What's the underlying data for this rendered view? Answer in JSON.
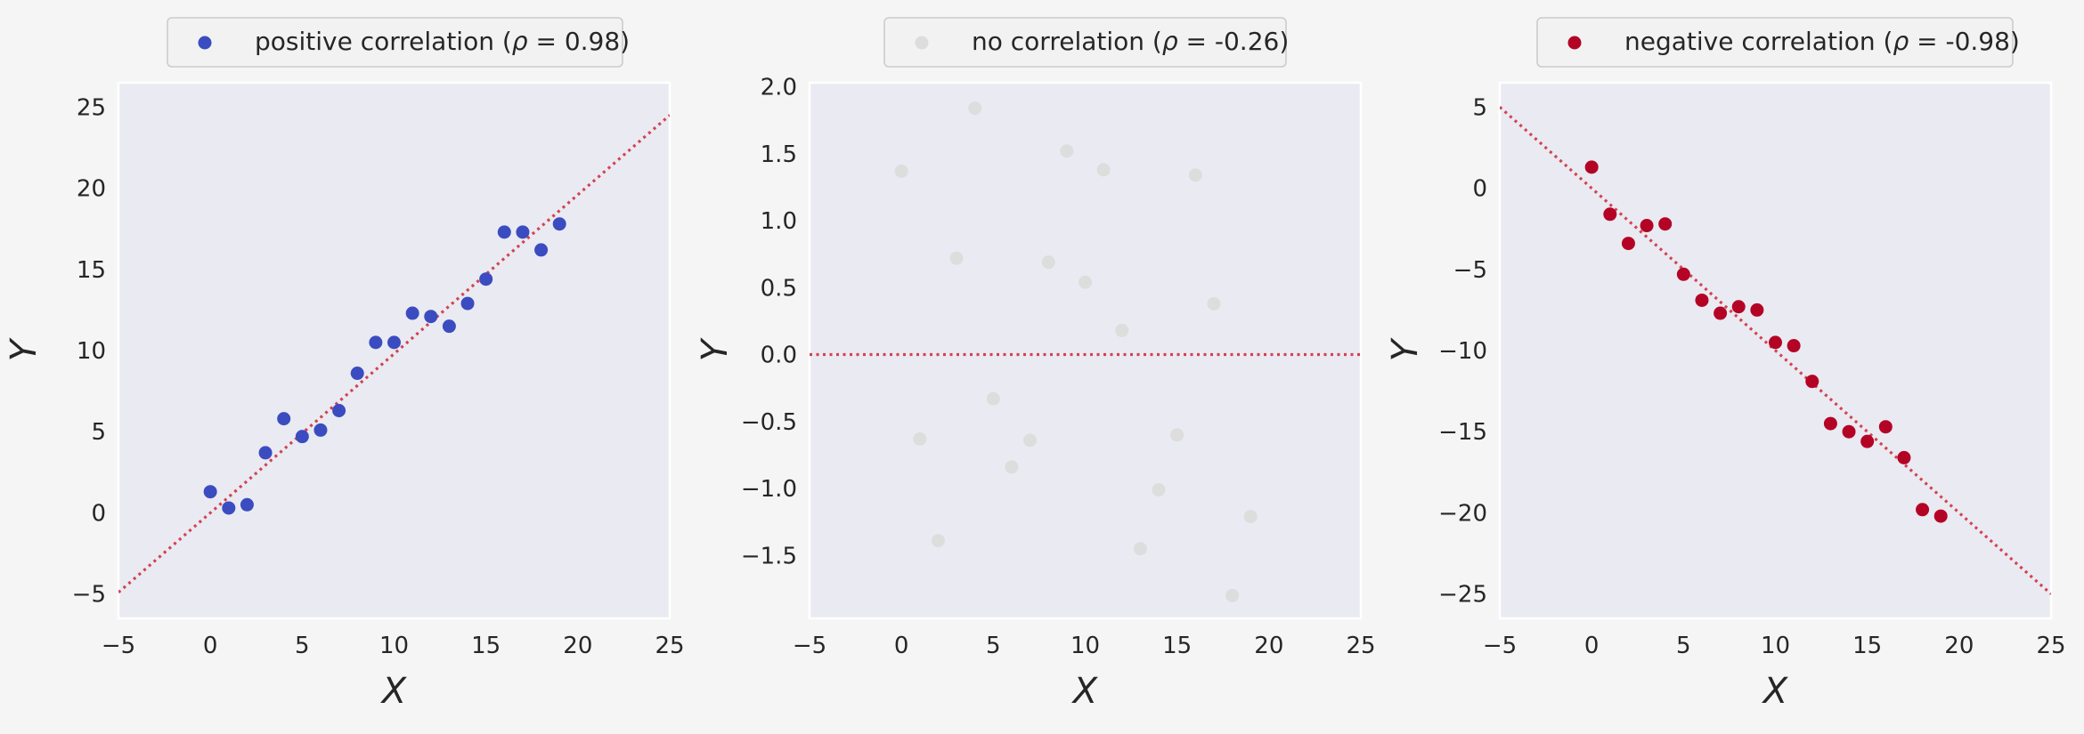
{
  "chart_data": [
    {
      "type": "scatter",
      "legend": {
        "prefix": "positive correlation (",
        "rho": "ρ",
        "eq": " = 0.98)"
      },
      "xlabel": "X",
      "ylabel": "Y",
      "xlim": [
        -5,
        25
      ],
      "ylim": [
        -6.5,
        26.5
      ],
      "xticks": [
        -5,
        0,
        5,
        10,
        15,
        20,
        25
      ],
      "yticks": [
        -5,
        0,
        5,
        10,
        15,
        20,
        25
      ],
      "ytick_labels": [
        "−5",
        "0",
        "5",
        "10",
        "15",
        "20",
        "25"
      ],
      "grid": false,
      "point_color": "#3b4cc0",
      "fit_line": {
        "slope": 0.98,
        "intercept": 0.0,
        "color": "#d2434f",
        "style": "dotted"
      },
      "series": [
        {
          "x": [
            0,
            1,
            2,
            3,
            4,
            5,
            6,
            7,
            8,
            9,
            10,
            11,
            12,
            13,
            14,
            15,
            16,
            17,
            18,
            19
          ],
          "values": [
            1.3,
            0.3,
            0.5,
            3.7,
            5.8,
            4.7,
            5.1,
            6.3,
            8.6,
            10.5,
            10.5,
            12.3,
            12.1,
            11.5,
            12.9,
            14.4,
            17.3,
            17.3,
            16.2,
            17.8
          ]
        }
      ]
    },
    {
      "type": "scatter",
      "legend": {
        "prefix": "no correlation (",
        "rho": "ρ",
        "eq": " = -0.26)"
      },
      "xlabel": "X",
      "ylabel": "Y",
      "xlim": [
        -5,
        25
      ],
      "ylim": [
        -1.97,
        2.03
      ],
      "xticks": [
        -5,
        0,
        5,
        10,
        15,
        20,
        25
      ],
      "yticks": [
        -1.5,
        -1.0,
        -0.5,
        0.0,
        0.5,
        1.0,
        1.5,
        2.0
      ],
      "ytick_labels": [
        "−1.5",
        "−1.0",
        "−0.5",
        "0.0",
        "0.5",
        "1.0",
        "1.5",
        "2.0"
      ],
      "grid": false,
      "point_color": "#dddddd",
      "fit_line": {
        "slope": 0.0,
        "intercept": 0.0,
        "color": "#d2434f",
        "style": "dotted"
      },
      "series": [
        {
          "x": [
            0,
            1,
            2,
            3,
            4,
            5,
            6,
            7,
            8,
            9,
            10,
            11,
            12,
            13,
            14,
            15,
            16,
            17,
            18,
            19
          ],
          "values": [
            1.37,
            -0.63,
            -1.39,
            0.72,
            1.84,
            -0.33,
            -0.84,
            -0.64,
            0.69,
            1.52,
            0.54,
            1.38,
            0.18,
            -1.45,
            -1.01,
            -0.6,
            1.34,
            0.38,
            -1.8,
            -1.21
          ]
        }
      ]
    },
    {
      "type": "scatter",
      "legend": {
        "prefix": "negative correlation (",
        "rho": "ρ",
        "eq": " = -0.98)"
      },
      "xlabel": "X",
      "ylabel": "Y",
      "xlim": [
        -5,
        25
      ],
      "ylim": [
        -26.5,
        6.5
      ],
      "xticks": [
        -5,
        0,
        5,
        10,
        15,
        20,
        25
      ],
      "yticks": [
        -25,
        -20,
        -15,
        -10,
        -5,
        0,
        5
      ],
      "ytick_labels": [
        "−25",
        "−20",
        "−15",
        "−10",
        "−5",
        "0",
        "5"
      ],
      "grid": false,
      "point_color": "#b40426",
      "fit_line": {
        "slope": -1.0,
        "intercept": 0.0,
        "color": "#d2434f",
        "style": "dotted"
      },
      "series": [
        {
          "x": [
            0,
            1,
            2,
            3,
            4,
            5,
            6,
            7,
            8,
            9,
            10,
            11,
            12,
            13,
            14,
            15,
            16,
            17,
            18,
            19
          ],
          "values": [
            1.3,
            -1.6,
            -3.4,
            -2.3,
            -2.2,
            -5.3,
            -6.9,
            -7.7,
            -7.3,
            -7.5,
            -9.5,
            -9.7,
            -11.9,
            -14.5,
            -15.0,
            -15.6,
            -14.7,
            -16.6,
            -19.8,
            -20.2
          ]
        }
      ]
    }
  ]
}
